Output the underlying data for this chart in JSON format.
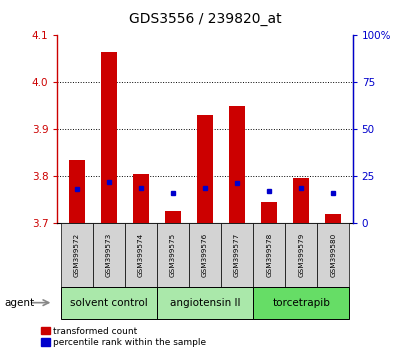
{
  "title": "GDS3556 / 239820_at",
  "samples": [
    "GSM399572",
    "GSM399573",
    "GSM399574",
    "GSM399575",
    "GSM399576",
    "GSM399577",
    "GSM399578",
    "GSM399579",
    "GSM399580"
  ],
  "red_values": [
    3.835,
    4.065,
    3.805,
    3.725,
    3.93,
    3.95,
    3.745,
    3.795,
    3.72
  ],
  "blue_values": [
    3.773,
    3.788,
    3.775,
    3.763,
    3.775,
    3.785,
    3.768,
    3.775,
    3.763
  ],
  "y_min": 3.7,
  "y_max": 4.1,
  "y_ticks": [
    3.7,
    3.8,
    3.9,
    4.0,
    4.1
  ],
  "y2_ticks": [
    0,
    25,
    50,
    75,
    100
  ],
  "y2_tick_labels": [
    "0",
    "25",
    "50",
    "75",
    "100%"
  ],
  "group_defs": [
    {
      "label": "solvent control",
      "start": 0,
      "end": 2,
      "color": "#aae8aa"
    },
    {
      "label": "angiotensin II",
      "start": 3,
      "end": 5,
      "color": "#aae8aa"
    },
    {
      "label": "torcetrapib",
      "start": 6,
      "end": 8,
      "color": "#66dd66"
    }
  ],
  "agent_label": "agent",
  "legend_red": "transformed count",
  "legend_blue": "percentile rank within the sample",
  "bar_width": 0.5,
  "red_color": "#cc0000",
  "blue_color": "#0000cc",
  "base_value": 3.7
}
